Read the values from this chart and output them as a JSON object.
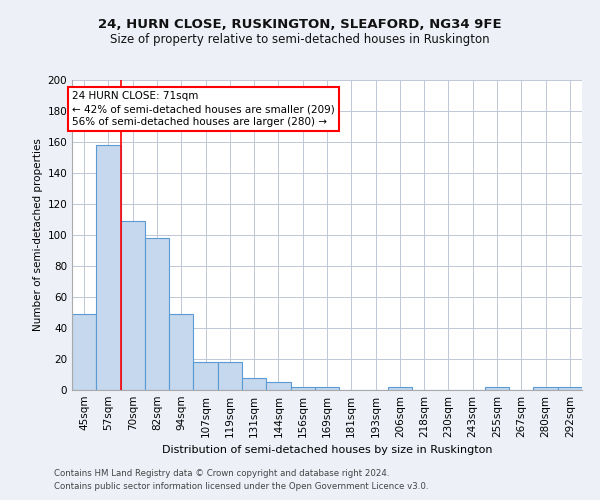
{
  "title1": "24, HURN CLOSE, RUSKINGTON, SLEAFORD, NG34 9FE",
  "title2": "Size of property relative to semi-detached houses in Ruskington",
  "xlabel": "Distribution of semi-detached houses by size in Ruskington",
  "ylabel": "Number of semi-detached properties",
  "footer1": "Contains HM Land Registry data © Crown copyright and database right 2024.",
  "footer2": "Contains public sector information licensed under the Open Government Licence v3.0.",
  "categories": [
    "45sqm",
    "57sqm",
    "70sqm",
    "82sqm",
    "94sqm",
    "107sqm",
    "119sqm",
    "131sqm",
    "144sqm",
    "156sqm",
    "169sqm",
    "181sqm",
    "193sqm",
    "206sqm",
    "218sqm",
    "230sqm",
    "243sqm",
    "255sqm",
    "267sqm",
    "280sqm",
    "292sqm"
  ],
  "values": [
    49,
    158,
    109,
    98,
    49,
    18,
    18,
    8,
    5,
    2,
    2,
    0,
    0,
    2,
    0,
    0,
    0,
    2,
    0,
    2,
    2
  ],
  "bar_color": "#c5d8ed",
  "bar_edge_color": "#5b9bd5",
  "grid_color": "#c0c8d8",
  "annotation_line1": "24 HURN CLOSE: 71sqm",
  "annotation_line2": "← 42% of semi-detached houses are smaller (209)",
  "annotation_line3": "56% of semi-detached houses are larger (280) →",
  "vline_x_index": 1.5,
  "vline_color": "red",
  "box_edge_color": "red",
  "ylim": [
    0,
    200
  ],
  "yticks": [
    0,
    20,
    40,
    60,
    80,
    100,
    120,
    140,
    160,
    180,
    200
  ],
  "background_color": "#eef0f8",
  "plot_bg_color": "#ffffff",
  "title1_fontsize": 9.5,
  "title2_fontsize": 8.5,
  "xlabel_fontsize": 8,
  "ylabel_fontsize": 7.5,
  "tick_fontsize": 7.5,
  "footer_fontsize": 6.2,
  "annot_fontsize": 7.5
}
